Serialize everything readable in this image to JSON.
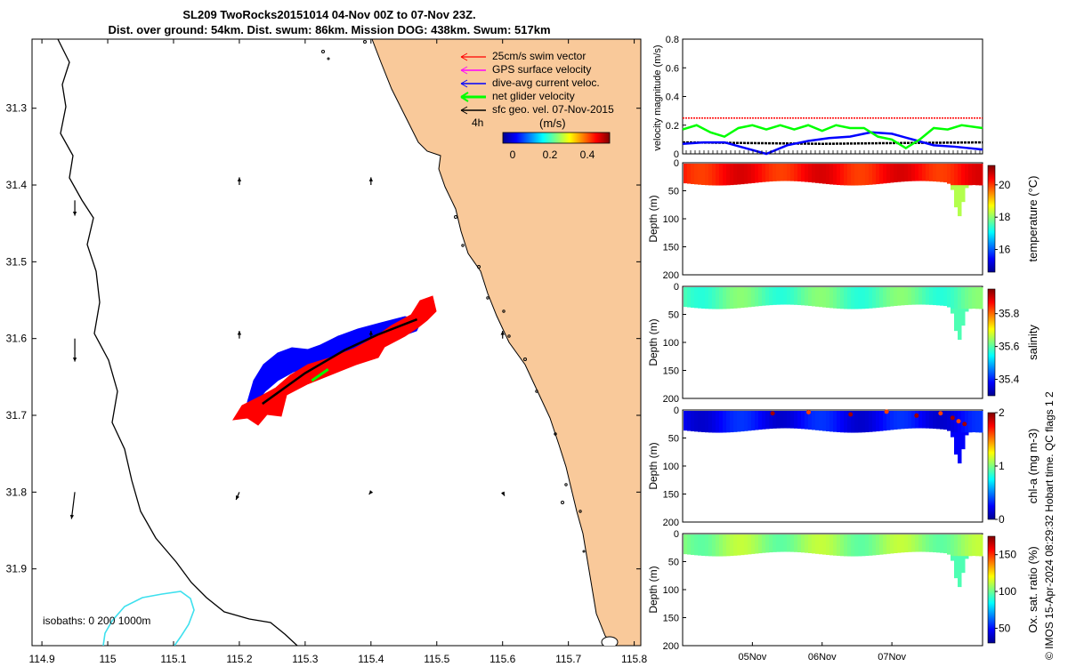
{
  "title": {
    "line1": "SL209 TwoRocks20151014 04-Nov 00Z to 07-Nov 23Z.",
    "line2": "Dist. over ground: 54km. Dist. swum: 86km. Mission DOG: 438km. Swum: 517km"
  },
  "credit": "© IMOS 15-Apr-2024 08:29:32 Hobart time. QC flags 1  2",
  "colors": {
    "land": "#f9c99a",
    "coast": "#000000",
    "isobath": "#3ee0ee",
    "red": "#ff0000",
    "blue": "#0000ff",
    "green": "#00ff00",
    "magenta": "#ff00ff"
  },
  "chart_data": [
    {
      "type": "map",
      "name": "track-map",
      "xlim": [
        114.885,
        115.81
      ],
      "ylim": [
        31.21,
        32
      ],
      "y_reversed": true,
      "xticks": [
        114.9,
        115,
        115.1,
        115.2,
        115.3,
        115.4,
        115.5,
        115.6,
        115.7,
        115.8
      ],
      "yticks": [
        31.3,
        31.4,
        31.5,
        31.6,
        31.7,
        31.8,
        31.9
      ],
      "legend": [
        {
          "label": "25cm/s swim vector",
          "color": "#ff0000"
        },
        {
          "label": "GPS surface velocity",
          "color": "#ff00ff"
        },
        {
          "label": "dive-avg current veloc.",
          "color": "#0000ff"
        },
        {
          "label": "net glider velocity",
          "color": "#00ff00"
        },
        {
          "label": "sfc geo. vel. 07-Nov-2015",
          "color": "#000000"
        }
      ],
      "legend_note": "4h",
      "colorbar": {
        "label": "(m/s)",
        "ticks": [
          0,
          0.2,
          0.4
        ],
        "range": [
          0,
          0.5
        ]
      },
      "isobaths_label": "isobaths: 0   200   1000m",
      "glider_track": [
        [
          115.235,
          31.685
        ],
        [
          115.3,
          31.645
        ],
        [
          115.36,
          31.615
        ],
        [
          115.41,
          31.595
        ],
        [
          115.47,
          31.575
        ]
      ],
      "net_velocity": [
        [
          115.31,
          31.655
        ],
        [
          115.335,
          31.64
        ]
      ],
      "sfc_vectors": [
        [
          114.95,
          31.42,
          0,
          0.02
        ],
        [
          115.2,
          31.4,
          0,
          -0.01
        ],
        [
          115.4,
          31.4,
          0,
          -0.01
        ],
        [
          114.95,
          31.6,
          0,
          0.03
        ],
        [
          115.2,
          31.6,
          0,
          -0.01
        ],
        [
          115.4,
          31.6,
          0,
          -0.01
        ],
        [
          115.6,
          31.6,
          0,
          -0.01
        ],
        [
          114.95,
          31.8,
          -0.005,
          0.035
        ],
        [
          115.2,
          31.8,
          -0.005,
          0.01
        ],
        [
          115.4,
          31.8,
          -0.003,
          0.003
        ],
        [
          115.6,
          31.8,
          0.003,
          0.005
        ]
      ]
    },
    {
      "type": "line",
      "name": "velocity-timeseries",
      "ylabel": "velocity magnitude (m/s)",
      "ylim": [
        0,
        0.8
      ],
      "yticks": [
        0,
        0.2,
        0.4,
        0.6,
        0.8
      ],
      "xlim": [
        0,
        4.3
      ],
      "series": [
        {
          "name": "swim vector",
          "color": "#ff0000",
          "x": [
            0,
            4.3
          ],
          "values": [
            0.25,
            0.25
          ]
        },
        {
          "name": "sfc geo. vel.",
          "color": "#000000",
          "x": [
            0,
            1,
            2,
            3,
            4.3
          ],
          "values": [
            0.08,
            0.075,
            0.07,
            0.075,
            0.08
          ]
        },
        {
          "name": "dive-avg current",
          "color": "#0000ff",
          "x": [
            0,
            0.3,
            0.6,
            0.9,
            1.2,
            1.5,
            1.8,
            2.1,
            2.4,
            2.7,
            3.0,
            3.3,
            3.6,
            3.9,
            4.3
          ],
          "values": [
            0.07,
            0.08,
            0.08,
            0.04,
            0.0,
            0.06,
            0.09,
            0.11,
            0.12,
            0.15,
            0.14,
            0.1,
            0.06,
            0.05,
            0.03
          ]
        },
        {
          "name": "net glider velocity",
          "color": "#00ff00",
          "x": [
            0,
            0.2,
            0.4,
            0.6,
            0.8,
            1.0,
            1.2,
            1.4,
            1.6,
            1.8,
            2.0,
            2.2,
            2.4,
            2.6,
            2.8,
            3.0,
            3.2,
            3.4,
            3.6,
            3.8,
            4.0,
            4.3
          ],
          "values": [
            0.17,
            0.2,
            0.15,
            0.12,
            0.18,
            0.2,
            0.17,
            0.2,
            0.17,
            0.2,
            0.16,
            0.2,
            0.18,
            0.18,
            0.12,
            0.1,
            0.04,
            0.1,
            0.18,
            0.17,
            0.2,
            0.18
          ]
        }
      ]
    },
    {
      "type": "heatmap",
      "name": "temperature-section",
      "ylabel": "Depth (m)",
      "cbar_label": "temperature (°C)",
      "ylim": [
        0,
        200
      ],
      "yticks": [
        0,
        50,
        100,
        150,
        200
      ],
      "cbar_range": [
        14.6,
        21.2
      ],
      "cbar_ticks": [
        16,
        18,
        20
      ],
      "palette": "jet",
      "surface_value": 20.3
    },
    {
      "type": "heatmap",
      "name": "salinity-section",
      "ylabel": "Depth (m)",
      "cbar_label": "salinity",
      "ylim": [
        0,
        200
      ],
      "yticks": [
        0,
        50,
        100,
        150,
        200
      ],
      "cbar_range": [
        35.3,
        35.95
      ],
      "cbar_ticks": [
        35.4,
        35.6,
        35.8
      ],
      "palette": "jet",
      "surface_value": 35.6
    },
    {
      "type": "heatmap",
      "name": "chla-section",
      "ylabel": "Depth (m)",
      "cbar_label": "chl-a (mg m-3)",
      "ylim": [
        0,
        200
      ],
      "yticks": [
        0,
        50,
        100,
        150,
        200
      ],
      "cbar_range": [
        0,
        2
      ],
      "cbar_ticks": [
        0,
        1,
        2
      ],
      "palette": "jet",
      "surface_value": 0.25
    },
    {
      "type": "heatmap",
      "name": "oxygen-section",
      "ylabel": "Depth (m)",
      "cbar_label": "Ox. sat. ratio (%)",
      "ylim": [
        0,
        200
      ],
      "yticks": [
        0,
        50,
        100,
        150,
        200
      ],
      "cbar_range": [
        30,
        175
      ],
      "cbar_ticks": [
        50,
        100,
        150
      ],
      "palette": "jet",
      "surface_value": 105,
      "xticks": [
        "05Nov",
        "06Nov",
        "07Nov"
      ],
      "xtick_values": [
        1,
        2,
        3
      ],
      "xlim": [
        0,
        4.3
      ]
    }
  ]
}
